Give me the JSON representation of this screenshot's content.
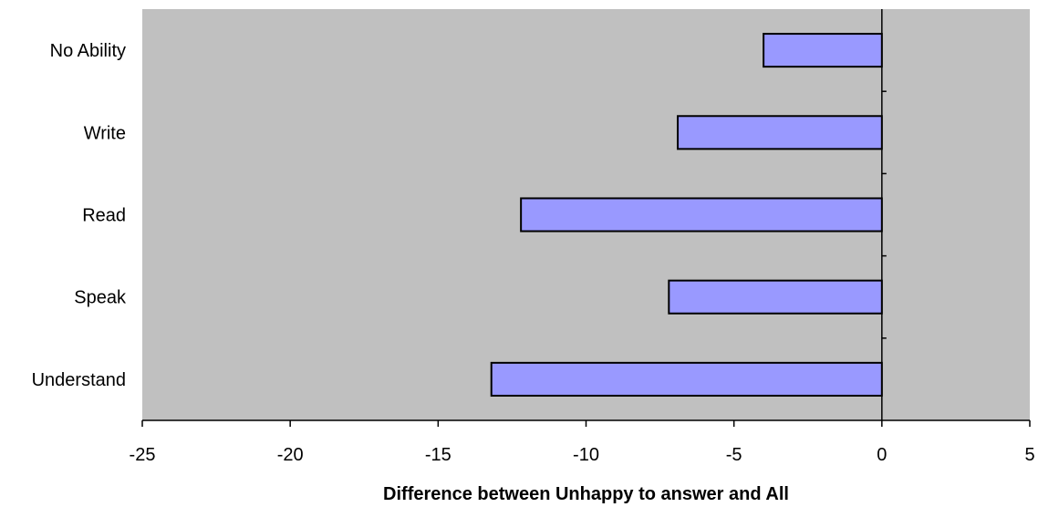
{
  "chart_data": {
    "type": "bar",
    "orientation": "horizontal",
    "categories": [
      "No Ability",
      "Write",
      "Read",
      "Speak",
      "Understand"
    ],
    "values": [
      -4,
      -6.9,
      -12.2,
      -7.2,
      -13.2
    ],
    "xlabel": "Difference between Unhappy to answer and All",
    "ylabel": "",
    "xlim": [
      -25,
      5
    ],
    "xticks": [
      -25,
      -20,
      -15,
      -10,
      -5,
      0,
      5
    ],
    "xtick_labels": [
      "-25",
      "-20",
      "-15",
      "-10",
      "-5",
      "0",
      "5"
    ],
    "grid": false,
    "legend": "none",
    "colors": {
      "plot_background": "#c0c0c0",
      "bar_fill": "#9999ff",
      "bar_stroke": "#000000"
    }
  }
}
